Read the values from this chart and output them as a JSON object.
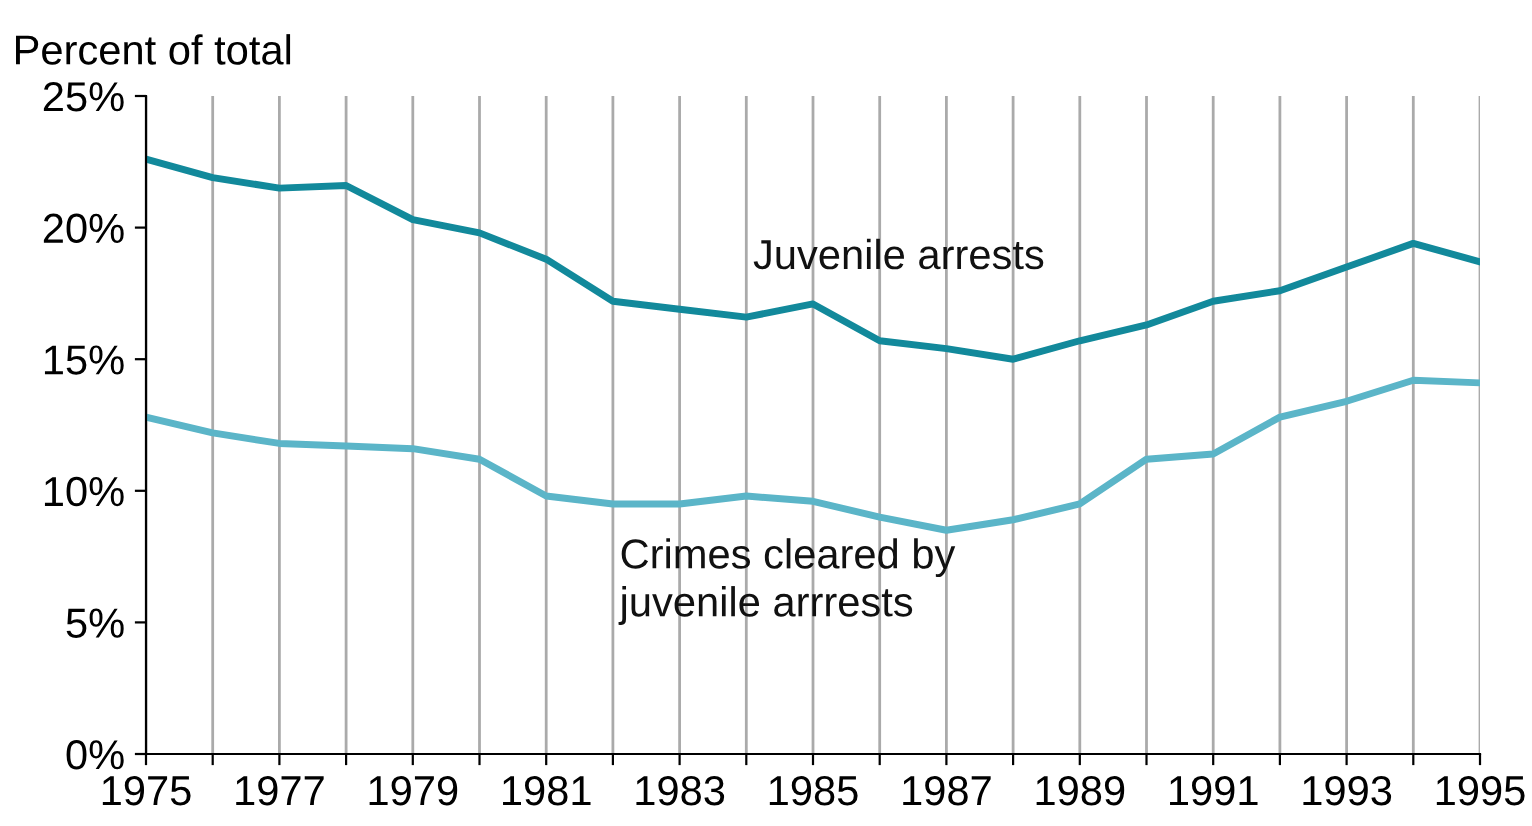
{
  "chart_data": {
    "type": "line",
    "ylabel": "Percent of total",
    "x": [
      1975,
      1976,
      1977,
      1978,
      1979,
      1980,
      1981,
      1982,
      1983,
      1984,
      1985,
      1986,
      1987,
      1988,
      1989,
      1990,
      1991,
      1992,
      1993,
      1994,
      1995
    ],
    "series": [
      {
        "name": "Juvenile arrests",
        "color": "#12899b",
        "values": [
          22.6,
          21.9,
          21.5,
          21.6,
          20.3,
          19.8,
          18.8,
          17.2,
          16.9,
          16.6,
          17.1,
          15.7,
          15.4,
          15.0,
          15.7,
          16.3,
          17.2,
          17.6,
          18.5,
          19.4,
          18.7
        ]
      },
      {
        "name": "Crimes cleared by\njuvenile arrrests",
        "color": "#5bb5c8",
        "values": [
          12.8,
          12.2,
          11.8,
          11.7,
          11.6,
          11.2,
          9.8,
          9.5,
          9.5,
          9.8,
          9.6,
          9.0,
          8.5,
          8.9,
          9.5,
          11.2,
          11.4,
          12.8,
          13.4,
          14.2,
          14.1
        ]
      }
    ],
    "xlim": [
      1975,
      1995
    ],
    "xticks": [
      1975,
      {
        "value": 1976,
        "label": null
      },
      1977,
      {
        "value": 1978,
        "label": null
      },
      1979,
      {
        "value": 1980,
        "label": null
      },
      1981,
      {
        "value": 1982,
        "label": null
      },
      1983,
      {
        "value": 1984,
        "label": null
      },
      1985,
      {
        "value": 1986,
        "label": null
      },
      1987,
      {
        "value": 1988,
        "label": null
      },
      1989,
      {
        "value": 1990,
        "label": null
      },
      1991,
      {
        "value": 1992,
        "label": null
      },
      1993,
      {
        "value": 1994,
        "label": null
      },
      1995
    ],
    "ylim": [
      0,
      25
    ],
    "yticks": [
      {
        "value": 0,
        "label": "0%"
      },
      {
        "value": 5,
        "label": "5%"
      },
      {
        "value": 10,
        "label": "10%"
      },
      {
        "value": 15,
        "label": "15%"
      },
      {
        "value": 20,
        "label": "20%"
      },
      {
        "value": 25,
        "label": "25%"
      }
    ],
    "grid": "x",
    "legend": false,
    "marker": "none",
    "line_style": "solid"
  }
}
